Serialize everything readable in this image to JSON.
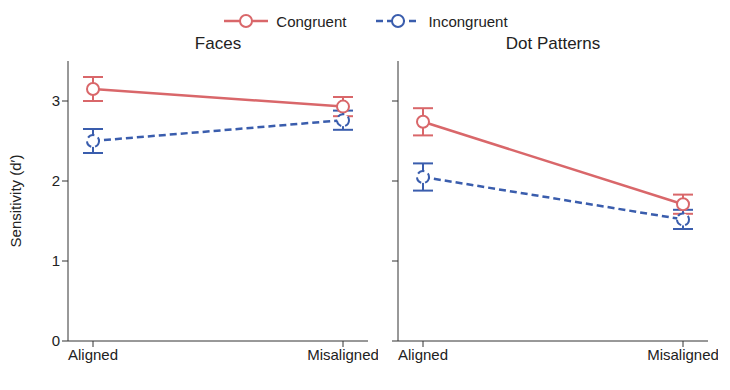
{
  "chart_data": [
    {
      "type": "line",
      "title": "Faces",
      "ylabel": "Sensitivity (d′)",
      "legend": "top",
      "categories": [
        "Aligned",
        "Misaligned"
      ],
      "ylim": [
        0,
        3.5
      ],
      "yticks": [
        0,
        1,
        2,
        3
      ],
      "series": [
        {
          "name": "Congruent",
          "color": "#d9676a",
          "marker": "circle",
          "line_style": "solid",
          "values": [
            3.15,
            2.93
          ],
          "error": [
            0.15,
            0.12
          ]
        },
        {
          "name": "Incongruent",
          "color": "#3a5dad",
          "marker": "circle",
          "line_style": "dashed",
          "values": [
            2.5,
            2.76
          ],
          "error": [
            0.15,
            0.12
          ]
        }
      ]
    },
    {
      "type": "line",
      "title": "Dot Patterns",
      "tick_labels": "x",
      "categories": [
        "Aligned",
        "Misaligned"
      ],
      "ylim": [
        0,
        3.5
      ],
      "yticks": [
        0,
        1,
        2,
        3
      ],
      "series": [
        {
          "name": "Congruent",
          "color": "#d9676a",
          "marker": "circle",
          "line_style": "solid",
          "values": [
            2.74,
            1.71
          ],
          "error": [
            0.17,
            0.12
          ]
        },
        {
          "name": "Incongruent",
          "color": "#3a5dad",
          "marker": "circle",
          "line_style": "dashed",
          "values": [
            2.05,
            1.52
          ],
          "error": [
            0.17,
            0.12
          ]
        }
      ]
    }
  ]
}
